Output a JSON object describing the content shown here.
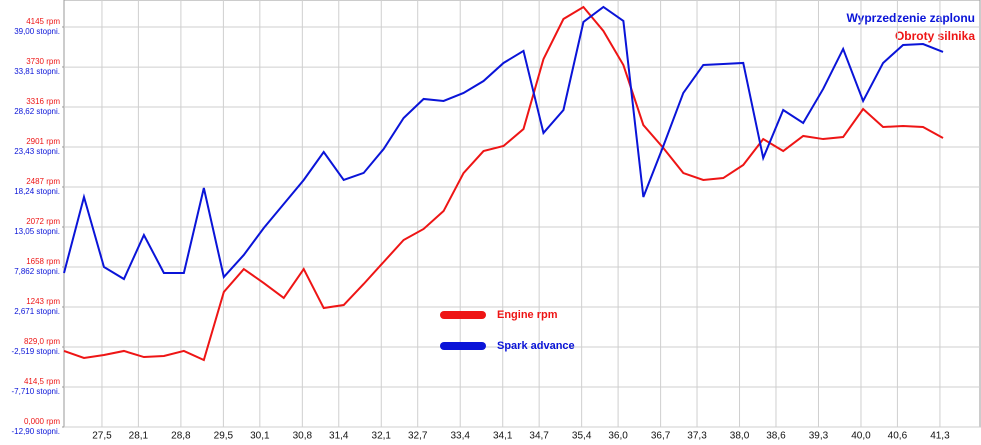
{
  "chart_data": {
    "type": "line",
    "ylabel": "Obroty silnika",
    "y2label": "Wyprzedzenie zaplonu",
    "x": [
      26.875,
      27.204,
      27.533,
      27.862,
      28.191,
      28.52,
      28.849,
      29.178,
      29.507,
      29.836,
      30.165,
      30.494,
      30.823,
      31.152,
      31.481,
      31.81,
      32.139,
      32.468,
      32.797,
      33.126,
      33.455,
      33.784,
      34.113,
      34.442,
      34.771,
      35.1,
      35.429,
      35.758,
      36.087,
      36.416,
      36.745,
      37.074,
      37.403,
      37.732,
      38.061,
      38.39,
      38.719,
      39.048,
      39.377,
      39.706,
      40.035,
      40.364,
      40.693,
      41.022,
      41.351
    ],
    "series": [
      {
        "name": "Engine rpm",
        "color": "#ee1515",
        "values": [
          788,
          715,
          746,
          788,
          725,
          736,
          788,
          694,
          1399,
          1637,
          1492,
          1337,
          1637,
          1233,
          1264,
          1482,
          1710,
          1938,
          2052,
          2238,
          2632,
          2860,
          2912,
          3088,
          3813,
          4228,
          4352,
          4104,
          3751,
          3129,
          2891,
          2632,
          2560,
          2580,
          2715,
          2984,
          2860,
          3016,
          2984,
          3005,
          3295,
          3109,
          3119,
          3109,
          2995
        ]
      },
      {
        "name": "Spark advance",
        "color": "#0a14d8",
        "axis": "y2",
        "values": [
          7.08,
          16.94,
          7.86,
          6.3,
          12.01,
          7.08,
          7.08,
          18.11,
          6.56,
          9.42,
          12.92,
          16.03,
          19.15,
          22.78,
          19.15,
          20.06,
          23.17,
          27.19,
          29.66,
          29.4,
          30.44,
          31.99,
          34.33,
          35.89,
          25.25,
          28.23,
          39.65,
          41.6,
          39.78,
          16.94,
          23.56,
          30.44,
          34.07,
          34.2,
          34.33,
          22.0,
          28.23,
          26.54,
          30.96,
          36.15,
          29.4,
          34.33,
          36.66,
          36.79,
          35.76
        ]
      }
    ],
    "xlim": [
      26.875,
      41.96
    ],
    "xticks": [
      {
        "value": 27.5,
        "label": "27,5"
      },
      {
        "value": 28.1,
        "label": "28,1"
      },
      {
        "value": 28.8,
        "label": "28,8"
      },
      {
        "value": 29.5,
        "label": "29,5"
      },
      {
        "value": 30.1,
        "label": "30,1"
      },
      {
        "value": 30.8,
        "label": "30,8"
      },
      {
        "value": 31.4,
        "label": "31,4"
      },
      {
        "value": 32.1,
        "label": "32,1"
      },
      {
        "value": 32.7,
        "label": "32,7"
      },
      {
        "value": 33.4,
        "label": "33,4"
      },
      {
        "value": 34.1,
        "label": "34,1"
      },
      {
        "value": 34.7,
        "label": "34,7"
      },
      {
        "value": 35.4,
        "label": "35,4"
      },
      {
        "value": 36.0,
        "label": "36,0"
      },
      {
        "value": 36.7,
        "label": "36,7"
      },
      {
        "value": 37.3,
        "label": "37,3"
      },
      {
        "value": 38.0,
        "label": "38,0"
      },
      {
        "value": 38.6,
        "label": "38,6"
      },
      {
        "value": 39.3,
        "label": "39,3"
      },
      {
        "value": 40.0,
        "label": "40,0"
      },
      {
        "value": 40.6,
        "label": "40,6"
      },
      {
        "value": 41.3,
        "label": "41,3"
      }
    ],
    "ylim": [
      0,
      4425
    ],
    "yticks": [
      {
        "value": 0,
        "label": "0,000 rpm"
      },
      {
        "value": 414.5,
        "label": "414,5 rpm"
      },
      {
        "value": 829,
        "label": "829,0 rpm"
      },
      {
        "value": 1243,
        "label": "1243 rpm"
      },
      {
        "value": 1658,
        "label": "1658 rpm"
      },
      {
        "value": 2072,
        "label": "2072 rpm"
      },
      {
        "value": 2487,
        "label": "2487 rpm"
      },
      {
        "value": 2901,
        "label": "2901 rpm"
      },
      {
        "value": 3316,
        "label": "3316 rpm"
      },
      {
        "value": 3730,
        "label": "3730 rpm"
      },
      {
        "value": 4145,
        "label": "4145 rpm"
      }
    ],
    "y2lim": [
      -12.9,
      42.5
    ],
    "y2ticks": [
      {
        "value": -12.9,
        "label": "-12,90 stopni."
      },
      {
        "value": -7.71,
        "label": "-7,710 stopni."
      },
      {
        "value": -2.519,
        "label": "-2,519 stopni."
      },
      {
        "value": 2.671,
        "label": "2,671 stopni."
      },
      {
        "value": 7.862,
        "label": "7,862 stopni."
      },
      {
        "value": 13.05,
        "label": "13,05 stopni."
      },
      {
        "value": 18.24,
        "label": "18,24 stopni."
      },
      {
        "value": 23.43,
        "label": "23,43 stopni."
      },
      {
        "value": 28.62,
        "label": "28,62 stopni."
      },
      {
        "value": 33.81,
        "label": "33,81 stopni."
      },
      {
        "value": 39.0,
        "label": "39,00 stopni."
      }
    ],
    "grid": true
  }
}
